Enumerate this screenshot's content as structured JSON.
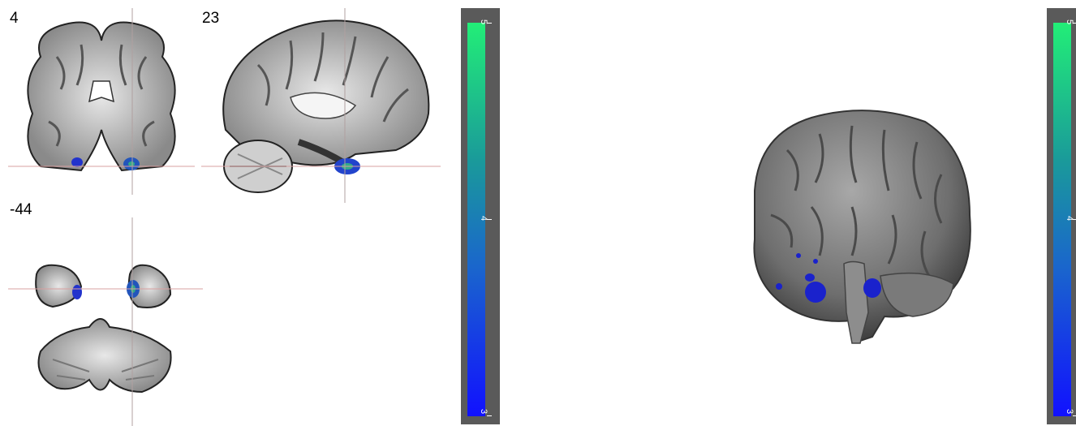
{
  "slices": {
    "coronal_label": "4",
    "sagittal_label": "23",
    "axial_label": "-44"
  },
  "colorbar_left": {
    "max_label": "5",
    "mid_label": "4",
    "min_label": "3",
    "colors": [
      "#22ee77",
      "#1a9a9a",
      "#1a66cc",
      "#1111ff"
    ]
  },
  "colorbar_right": {
    "max_label": "5",
    "mid_label": "4",
    "min_label": "3",
    "colors": [
      "#22ee77",
      "#1a9a9a",
      "#1a66cc",
      "#1111ff"
    ]
  }
}
